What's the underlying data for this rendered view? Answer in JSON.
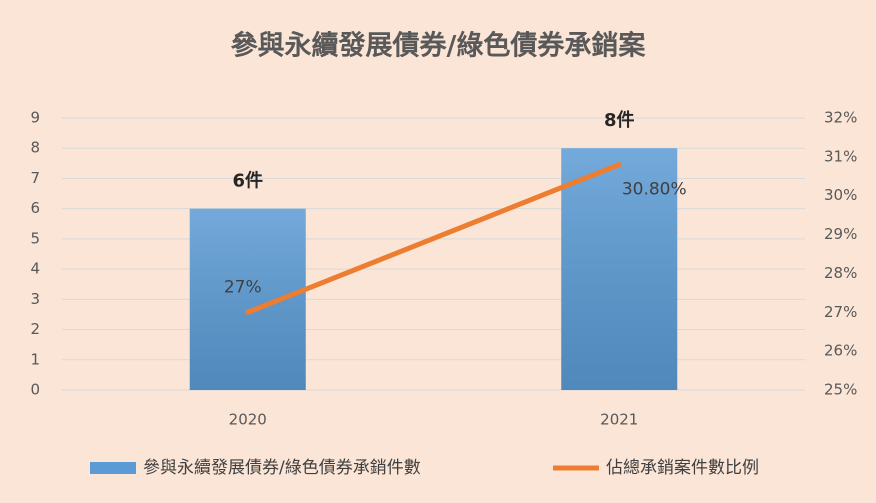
{
  "chart_data": {
    "type": "bar",
    "title": "參與永續發展債券/綠色債券承銷案",
    "categories": [
      "2020",
      "2021"
    ],
    "series": [
      {
        "name": "參與永續發展債券/綠色債券承銷件數",
        "type": "bar",
        "color": "#5b9bd5",
        "values": [
          6,
          8
        ],
        "value_labels": [
          "6件",
          "8件"
        ]
      },
      {
        "name": "佔總承銷案件數比例",
        "type": "line",
        "axis": "y2",
        "color": "#ed7d31",
        "values": [
          27,
          30.8
        ],
        "value_labels": [
          "27%",
          "30.80%"
        ]
      }
    ],
    "ylim": [
      0,
      9
    ],
    "yticks": [
      0,
      1,
      2,
      3,
      4,
      5,
      6,
      7,
      8,
      9
    ],
    "y2lim": [
      25,
      32
    ],
    "y2ticks": [
      {
        "value": 25,
        "label": "25%"
      },
      {
        "value": 26,
        "label": "26%"
      },
      {
        "value": 27,
        "label": "27%"
      },
      {
        "value": 28,
        "label": "28%"
      },
      {
        "value": 29,
        "label": "29%"
      },
      {
        "value": 30,
        "label": "30%"
      },
      {
        "value": 31,
        "label": "31%"
      },
      {
        "value": 32,
        "label": "32%"
      }
    ],
    "grid": true,
    "legend": "bottom"
  }
}
